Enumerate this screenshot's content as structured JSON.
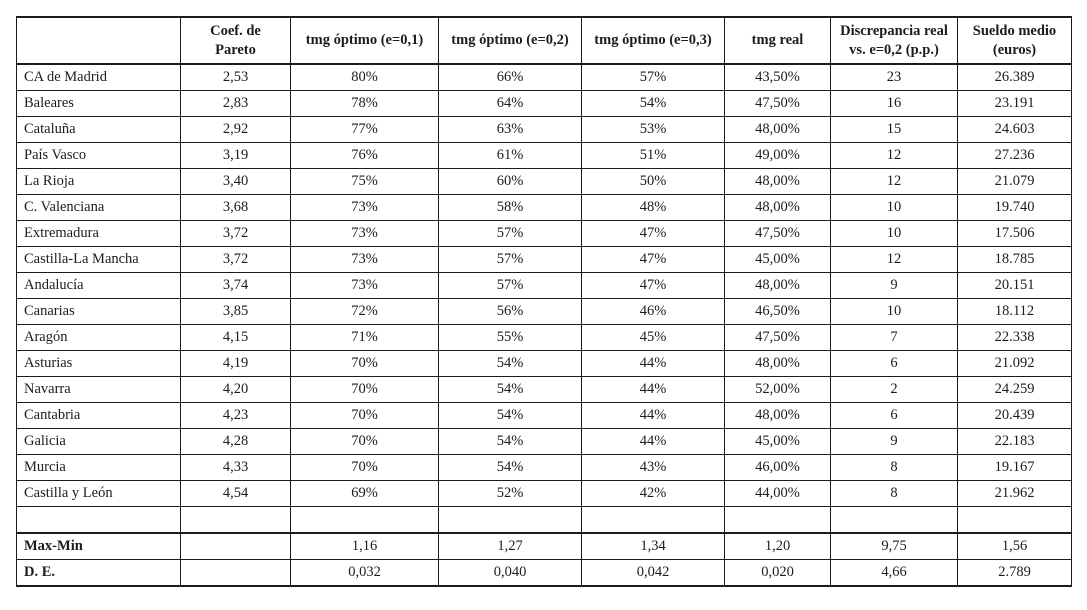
{
  "colors": {
    "background": "#ffffff",
    "text": "#1c1c1c",
    "border": "#1c1c1c"
  },
  "table": {
    "columns": [
      "",
      "Coef. de Pareto",
      "tmg óptimo (e=0,1)",
      "tmg óptimo (e=0,2)",
      "tmg óptimo (e=0,3)",
      "tmg real",
      "Discrepancia real vs. e=0,2 (p.p.)",
      "Sueldo medio (euros)"
    ],
    "rows": [
      [
        "CA de Madrid",
        "2,53",
        "80%",
        "66%",
        "57%",
        "43,50%",
        "23",
        "26.389"
      ],
      [
        "Baleares",
        "2,83",
        "78%",
        "64%",
        "54%",
        "47,50%",
        "16",
        "23.191"
      ],
      [
        "Cataluña",
        "2,92",
        "77%",
        "63%",
        "53%",
        "48,00%",
        "15",
        "24.603"
      ],
      [
        "País Vasco",
        "3,19",
        "76%",
        "61%",
        "51%",
        "49,00%",
        "12",
        "27.236"
      ],
      [
        "La Rioja",
        "3,40",
        "75%",
        "60%",
        "50%",
        "48,00%",
        "12",
        "21.079"
      ],
      [
        "C. Valenciana",
        "3,68",
        "73%",
        "58%",
        "48%",
        "48,00%",
        "10",
        "19.740"
      ],
      [
        "Extremadura",
        "3,72",
        "73%",
        "57%",
        "47%",
        "47,50%",
        "10",
        "17.506"
      ],
      [
        "Castilla-La Mancha",
        "3,72",
        "73%",
        "57%",
        "47%",
        "45,00%",
        "12",
        "18.785"
      ],
      [
        "Andalucía",
        "3,74",
        "73%",
        "57%",
        "47%",
        "48,00%",
        "9",
        "20.151"
      ],
      [
        "Canarias",
        "3,85",
        "72%",
        "56%",
        "46%",
        "46,50%",
        "10",
        "18.112"
      ],
      [
        "Aragón",
        "4,15",
        "71%",
        "55%",
        "45%",
        "47,50%",
        "7",
        "22.338"
      ],
      [
        "Asturias",
        "4,19",
        "70%",
        "54%",
        "44%",
        "48,00%",
        "6",
        "21.092"
      ],
      [
        "Navarra",
        "4,20",
        "70%",
        "54%",
        "44%",
        "52,00%",
        "2",
        "24.259"
      ],
      [
        "Cantabria",
        "4,23",
        "70%",
        "54%",
        "44%",
        "48,00%",
        "6",
        "20.439"
      ],
      [
        "Galicia",
        "4,28",
        "70%",
        "54%",
        "44%",
        "45,00%",
        "9",
        "22.183"
      ],
      [
        "Murcia",
        "4,33",
        "70%",
        "54%",
        "43%",
        "46,00%",
        "8",
        "19.167"
      ],
      [
        "Castilla y León",
        "4,54",
        "69%",
        "52%",
        "42%",
        "44,00%",
        "8",
        "21.962"
      ]
    ],
    "spacer_row": [
      "",
      "",
      "",
      "",
      "",
      "",
      "",
      ""
    ],
    "summary_rows": [
      [
        "Max-Min",
        "",
        "1,16",
        "1,27",
        "1,34",
        "1,20",
        "9,75",
        "1,56"
      ],
      [
        "D. E.",
        "",
        "0,032",
        "0,040",
        "0,042",
        "0,020",
        "4,66",
        "2.789"
      ]
    ]
  }
}
